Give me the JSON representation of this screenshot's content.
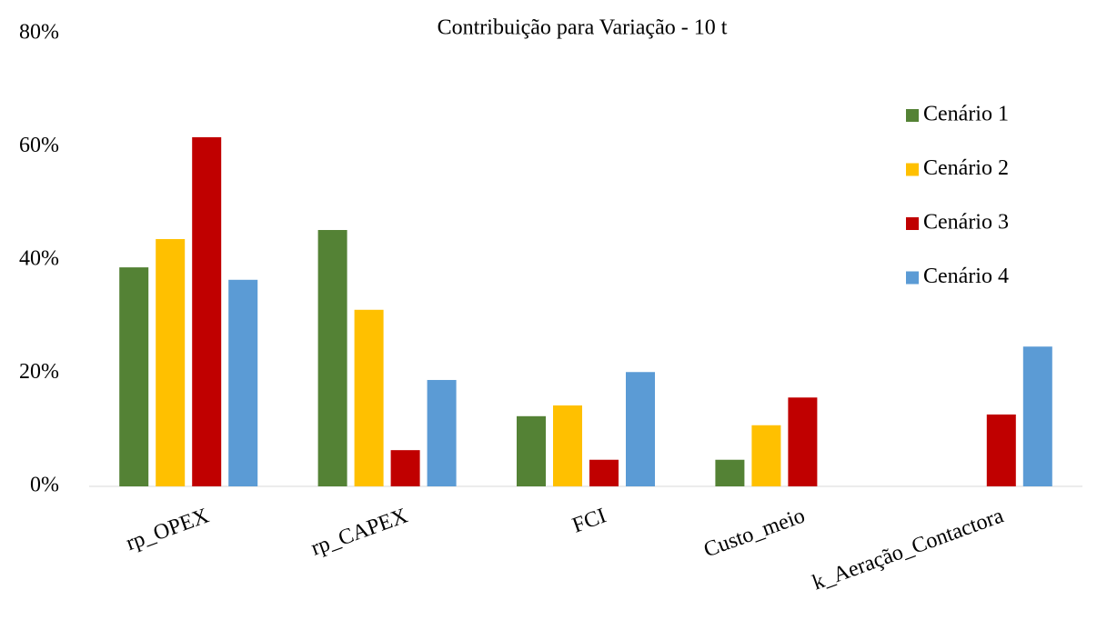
{
  "chart_data": {
    "type": "bar",
    "title": "Contribuição para Variação - 10 t",
    "categories": [
      "rp_OPEX",
      "rp_CAPEX",
      "FCI",
      "Custo_meio",
      "k_Aeração_Contactora"
    ],
    "series": [
      {
        "name": "Cenário 1",
        "color": "#548235",
        "values": [
          38.7,
          45.3,
          12.4,
          4.7,
          null
        ]
      },
      {
        "name": "Cenário 2",
        "color": "#ffc000",
        "values": [
          43.7,
          31.2,
          14.3,
          10.8,
          null
        ]
      },
      {
        "name": "Cenário 3",
        "color": "#c00000",
        "values": [
          61.7,
          6.4,
          4.7,
          15.7,
          12.7
        ]
      },
      {
        "name": "Cenário 4",
        "color": "#5b9bd5",
        "values": [
          36.5,
          18.8,
          20.2,
          null,
          24.7
        ]
      }
    ],
    "ylim": [
      0,
      80
    ],
    "yticks": [
      {
        "value": 0,
        "label": "0%"
      },
      {
        "value": 20,
        "label": "20%"
      },
      {
        "value": 40,
        "label": "40%"
      },
      {
        "value": 60,
        "label": "60%"
      },
      {
        "value": 80,
        "label": "80%"
      }
    ],
    "grid": false,
    "legend": "upper right"
  }
}
